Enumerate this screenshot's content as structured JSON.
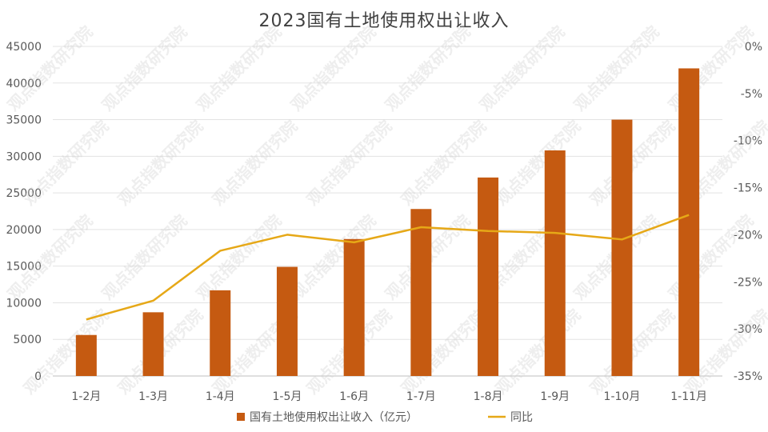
{
  "chart_data": {
    "type": "bar",
    "title": "2023国有土地使用权出让收入",
    "categories": [
      "1-2月",
      "1-3月",
      "1-4月",
      "1-5月",
      "1-6月",
      "1-7月",
      "1-8月",
      "1-9月",
      "1-10月",
      "1-11月"
    ],
    "series": [
      {
        "name": "国有土地使用权出让收入（亿元）",
        "type": "bar",
        "axis": "left",
        "color": "#C55A11",
        "values": [
          5600,
          8700,
          11700,
          14900,
          18700,
          22800,
          27100,
          30800,
          35000,
          42000
        ]
      },
      {
        "name": "同比",
        "type": "line",
        "axis": "right",
        "color": "#E6A817",
        "values": [
          -29.0,
          -27.0,
          -21.7,
          -20.0,
          -20.8,
          -19.2,
          -19.6,
          -19.8,
          -20.5,
          -17.9
        ]
      }
    ],
    "y_left": {
      "ylim": [
        0,
        45000
      ],
      "ticks": [
        "0",
        "5000",
        "10000",
        "15000",
        "20000",
        "25000",
        "30000",
        "35000",
        "40000",
        "45000"
      ]
    },
    "y_right": {
      "ylim": [
        -35,
        0
      ],
      "ticks": [
        "-35%",
        "-30%",
        "-25%",
        "-20%",
        "-15%",
        "-10%",
        "-5%",
        "0%"
      ]
    },
    "grid": true,
    "legend": "bottom",
    "watermark": "观点指数研究院"
  }
}
